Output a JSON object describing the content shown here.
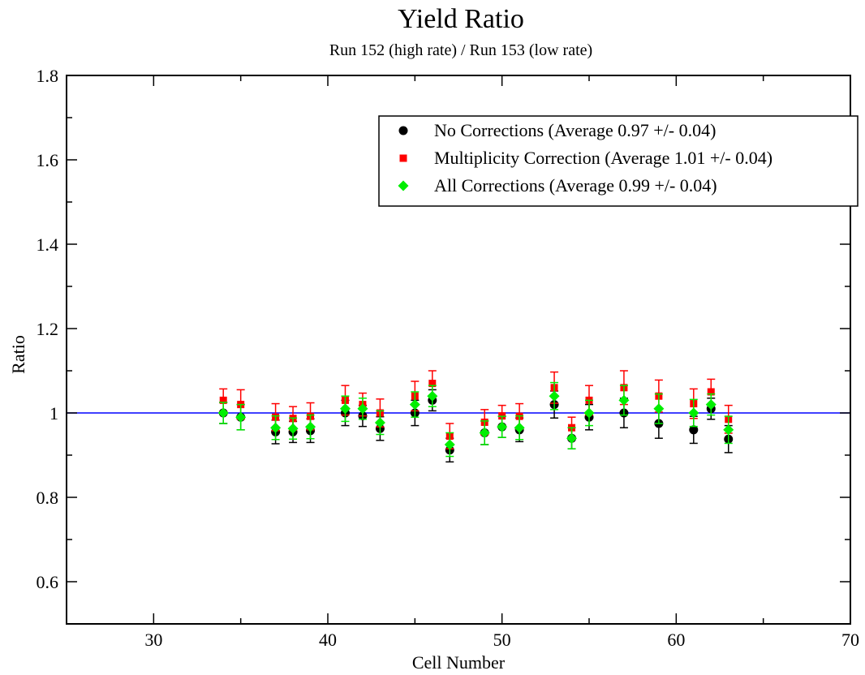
{
  "chart_data": {
    "type": "scatter",
    "title": "Yield Ratio",
    "subtitle": "Run 152 (high rate) / Run 153 (low rate)",
    "xlabel": "Cell Number",
    "ylabel": "Ratio",
    "xlim": [
      25,
      70
    ],
    "ylim": [
      0.5,
      1.8
    ],
    "x_ticks": [
      30,
      40,
      50,
      60,
      70
    ],
    "x_tick_labels": [
      "30",
      "40",
      "50",
      "60",
      "70"
    ],
    "y_ticks": [
      0.6,
      0.8,
      1.0,
      1.2,
      1.4,
      1.6,
      1.8
    ],
    "y_tick_labels": [
      "0.6",
      "0.8",
      "1",
      "1.2",
      "1.4",
      "1.6",
      "1.8"
    ],
    "grid": false,
    "reference_line": {
      "y": 1.0,
      "color": "#0000ff"
    },
    "legend_position": "top-right",
    "series": [
      {
        "name": "No Corrections (Average 0.97 +/- 0.04)",
        "marker": "circle",
        "color": "#000000",
        "x": [
          34,
          35,
          37,
          38,
          39,
          41,
          42,
          43,
          45,
          46,
          47,
          49,
          50,
          51,
          53,
          54,
          55,
          57,
          59,
          61,
          62,
          63
        ],
        "y": [
          1.0,
          0.99,
          0.955,
          0.955,
          0.958,
          1.0,
          0.993,
          0.963,
          1.0,
          1.03,
          0.912,
          0.953,
          0.967,
          0.96,
          1.02,
          0.94,
          0.99,
          1.0,
          0.975,
          0.96,
          1.01,
          0.938
        ],
        "err": [
          0.025,
          0.03,
          0.028,
          0.025,
          0.028,
          0.03,
          0.025,
          0.028,
          0.03,
          0.025,
          0.028,
          0.028,
          0.025,
          0.028,
          0.032,
          0.025,
          0.03,
          0.035,
          0.035,
          0.032,
          0.025,
          0.032
        ]
      },
      {
        "name": "Multiplicity Correction (Average 1.01 +/- 0.04)",
        "marker": "square",
        "color": "#ff0000",
        "x": [
          34,
          35,
          37,
          38,
          39,
          41,
          42,
          43,
          45,
          46,
          47,
          49,
          50,
          51,
          53,
          54,
          55,
          57,
          59,
          61,
          62,
          63
        ],
        "y": [
          1.03,
          1.02,
          0.99,
          0.987,
          0.992,
          1.03,
          1.02,
          1.0,
          1.04,
          1.07,
          0.945,
          0.978,
          0.993,
          0.992,
          1.06,
          0.965,
          1.03,
          1.06,
          1.04,
          1.022,
          1.05,
          0.985
        ],
        "err": [
          0.027,
          0.035,
          0.032,
          0.028,
          0.032,
          0.035,
          0.027,
          0.033,
          0.035,
          0.03,
          0.03,
          0.03,
          0.025,
          0.03,
          0.037,
          0.025,
          0.035,
          0.04,
          0.038,
          0.035,
          0.03,
          0.033
        ]
      },
      {
        "name": "All Corrections (Average 0.99 +/- 0.04)",
        "marker": "diamond",
        "color": "#00ee00",
        "x": [
          34,
          35,
          37,
          38,
          39,
          41,
          42,
          43,
          45,
          46,
          47,
          49,
          50,
          51,
          53,
          54,
          55,
          57,
          59,
          61,
          62,
          63
        ],
        "y": [
          1.0,
          0.99,
          0.965,
          0.963,
          0.967,
          1.01,
          1.01,
          0.977,
          1.02,
          1.04,
          0.925,
          0.953,
          0.967,
          0.965,
          1.04,
          0.94,
          1.0,
          1.03,
          1.01,
          1.0,
          1.02,
          0.96
        ],
        "err": [
          0.025,
          0.03,
          0.028,
          0.025,
          0.028,
          0.03,
          0.025,
          0.028,
          0.03,
          0.025,
          0.028,
          0.028,
          0.025,
          0.028,
          0.032,
          0.025,
          0.03,
          0.035,
          0.035,
          0.032,
          0.025,
          0.032
        ]
      }
    ]
  }
}
